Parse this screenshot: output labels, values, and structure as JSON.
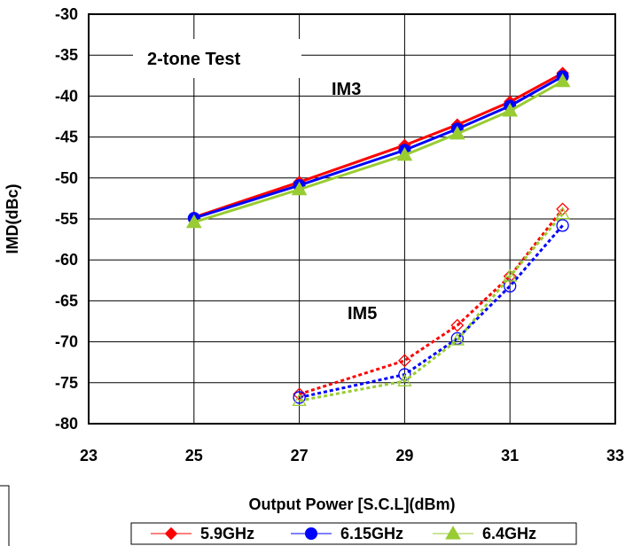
{
  "chart_data": {
    "type": "line",
    "xlabel": "Output Power [S.C.L](dBm)",
    "ylabel": "IMD(dBc)",
    "xlim": [
      23,
      33
    ],
    "ylim": [
      -80,
      -30
    ],
    "xticks": [
      "23",
      "25",
      "27",
      "29",
      "31",
      "33"
    ],
    "yticks": [
      "-30",
      "-35",
      "-40",
      "-45",
      "-50",
      "-55",
      "-60",
      "-65",
      "-70",
      "-75",
      "-80"
    ],
    "grid": true,
    "legend_position": "bottom",
    "annotations": {
      "title_box": "2-tone Test",
      "im3": "IM3",
      "im5": "IM5"
    },
    "series": [
      {
        "name": "5.9GHz",
        "color": "#ff0000",
        "marker": "diamond",
        "im3": [
          [
            25,
            -54.8
          ],
          [
            27,
            -50.5
          ],
          [
            29,
            -46.0
          ],
          [
            30,
            -43.5
          ],
          [
            31,
            -40.7
          ],
          [
            32,
            -37.2
          ]
        ],
        "im5": [
          [
            27,
            -76.4
          ],
          [
            29,
            -72.3
          ],
          [
            30,
            -68.0
          ],
          [
            31,
            -62.0
          ],
          [
            32,
            -53.8
          ]
        ]
      },
      {
        "name": "6.15GHz",
        "color": "#0000ff",
        "marker": "circle",
        "im3": [
          [
            25,
            -54.9
          ],
          [
            27,
            -50.9
          ],
          [
            29,
            -46.6
          ],
          [
            30,
            -44.0
          ],
          [
            31,
            -41.2
          ],
          [
            32,
            -37.6
          ]
        ],
        "im5": [
          [
            27,
            -76.8
          ],
          [
            29,
            -74.0
          ],
          [
            30,
            -69.6
          ],
          [
            31,
            -63.2
          ],
          [
            32,
            -55.8
          ]
        ]
      },
      {
        "name": "6.4GHz",
        "color": "#99cc33",
        "marker": "triangle",
        "im3": [
          [
            25,
            -55.4
          ],
          [
            27,
            -51.4
          ],
          [
            29,
            -47.2
          ],
          [
            30,
            -44.6
          ],
          [
            31,
            -41.8
          ],
          [
            32,
            -38.2
          ]
        ],
        "im5": [
          [
            27,
            -77.2
          ],
          [
            29,
            -74.8
          ],
          [
            30,
            -69.8
          ],
          [
            31,
            -62.0
          ],
          [
            32,
            -54.4
          ]
        ]
      }
    ]
  }
}
